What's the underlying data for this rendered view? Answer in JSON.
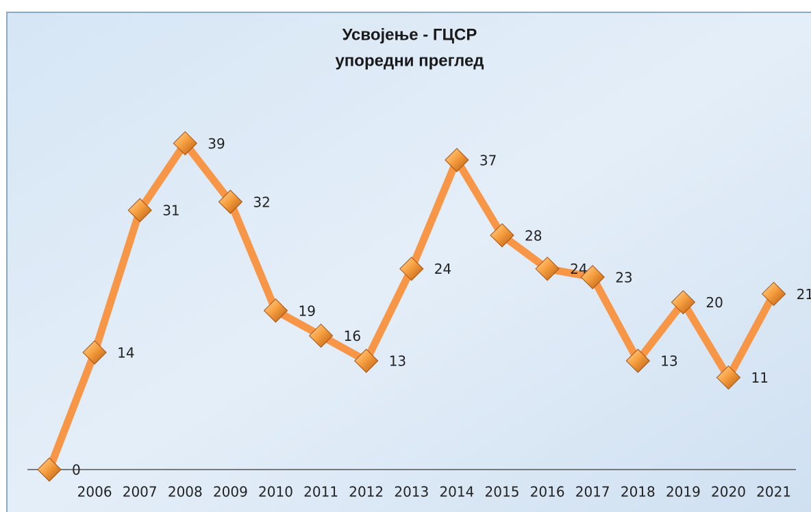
{
  "chart_data": {
    "type": "line",
    "title": "Усвојење - ГЦСР",
    "subtitle": "упоредни преглед",
    "categories": [
      null,
      "2006",
      "2007",
      "2008",
      "2009",
      "2010",
      "2011",
      "2012",
      "2013",
      "2014",
      "2015",
      "2016",
      "2017",
      "2018",
      "2019",
      "2020",
      "2021"
    ],
    "series": [
      {
        "color": "#f79646",
        "values": [
          0,
          14,
          31,
          39,
          32,
          19,
          16,
          13,
          24,
          37,
          28,
          24,
          23,
          13,
          20,
          11,
          21
        ]
      }
    ],
    "ylim": [
      0,
      45
    ]
  }
}
